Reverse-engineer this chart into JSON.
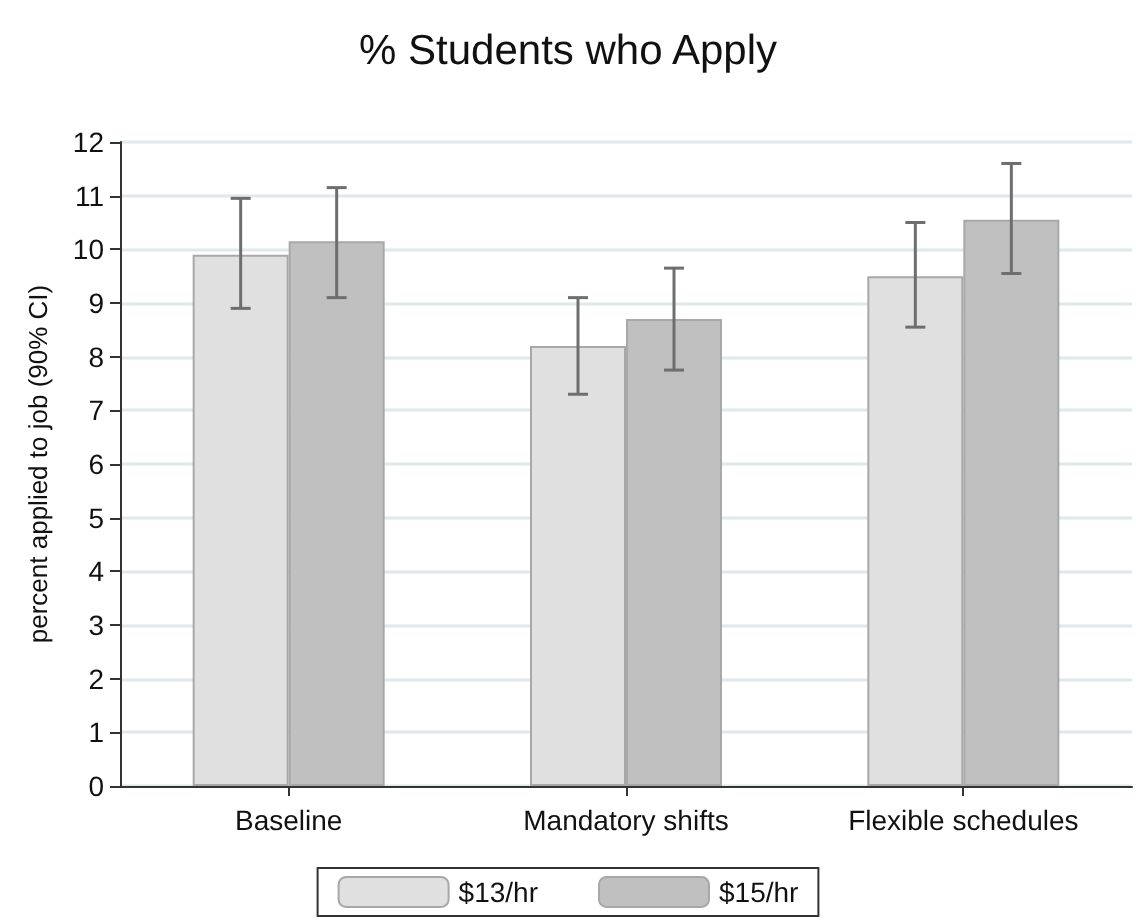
{
  "chart_data": {
    "type": "bar",
    "title": "% Students who Apply",
    "ylabel": "percent applied to job (90% CI)",
    "categories": [
      "Baseline",
      "Mandatory shifts",
      "Flexible schedules"
    ],
    "series": [
      {
        "name": "$13/hr",
        "color": "#e0e0e0",
        "values": [
          9.9,
          8.2,
          9.5
        ],
        "errors": [
          [
            8.9,
            10.95
          ],
          [
            7.3,
            9.1
          ],
          [
            8.55,
            10.5
          ]
        ]
      },
      {
        "name": "$15/hr",
        "color": "#c0c0c0",
        "values": [
          10.15,
          8.7,
          10.55
        ],
        "errors": [
          [
            9.1,
            11.15
          ],
          [
            7.75,
            9.65
          ],
          [
            9.55,
            11.6
          ]
        ]
      }
    ],
    "ylim": [
      0,
      12
    ],
    "yticks": [
      0,
      1,
      2,
      3,
      4,
      5,
      6,
      7,
      8,
      9,
      10,
      11,
      12
    ],
    "grid": "y",
    "legend": "bottom"
  }
}
